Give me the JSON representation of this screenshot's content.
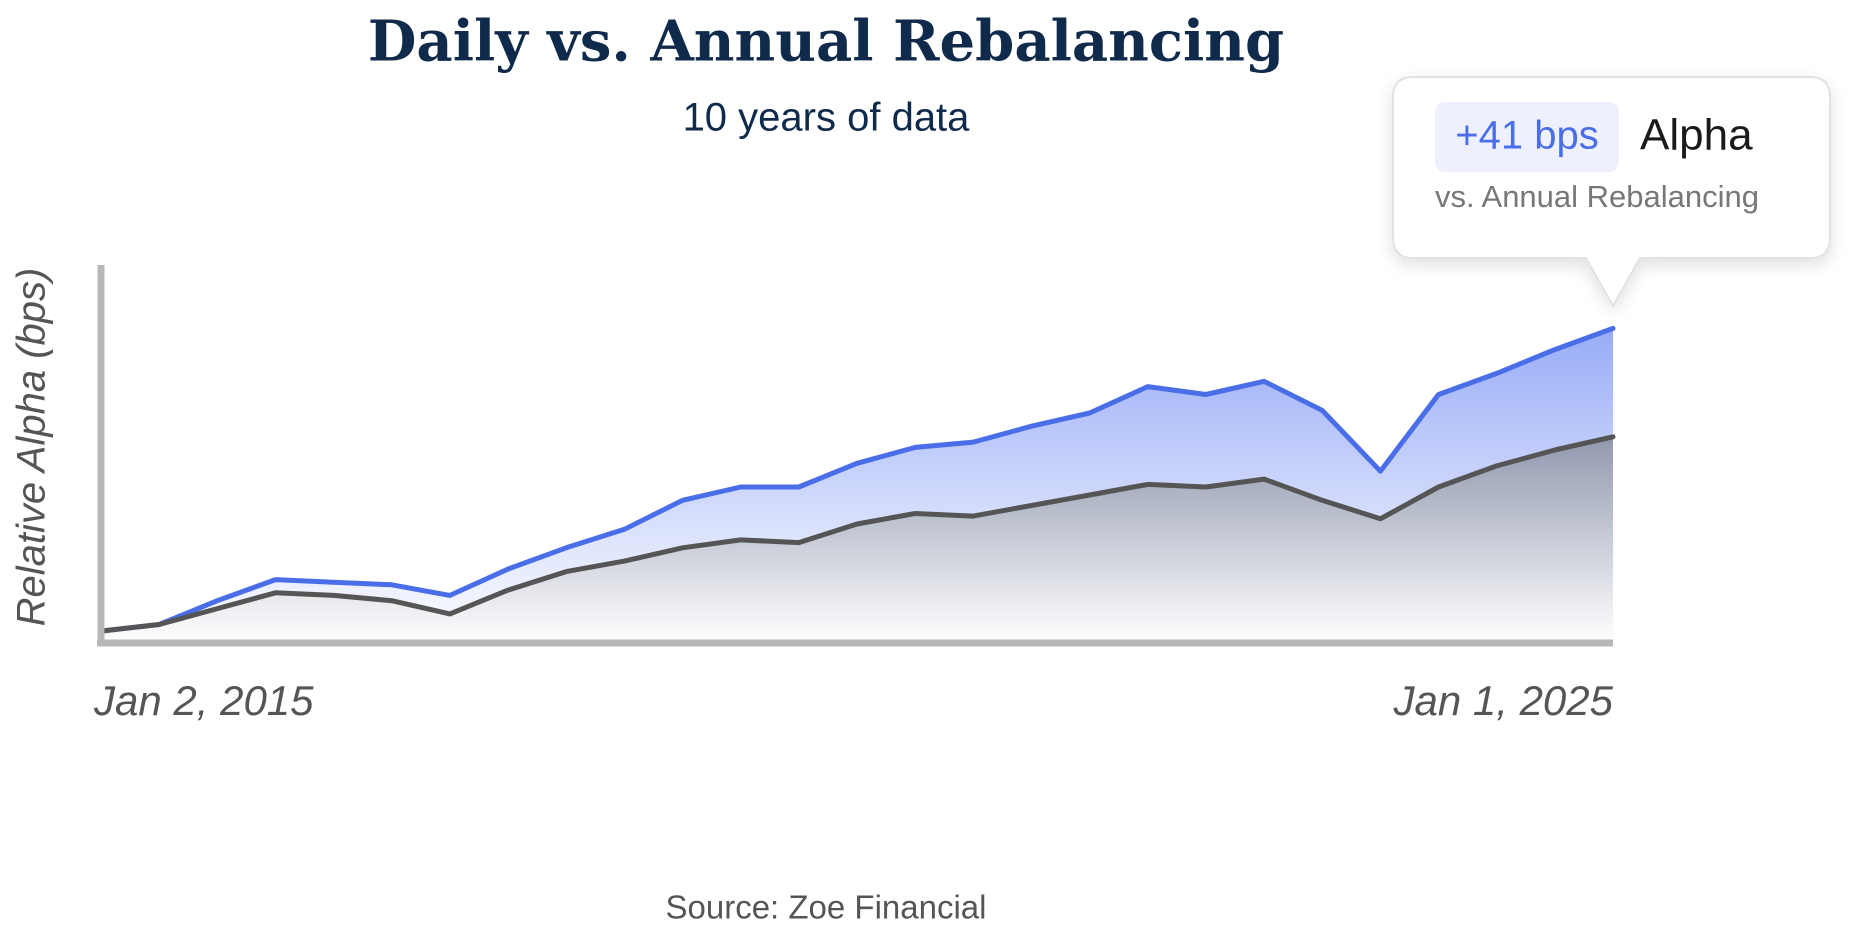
{
  "chart_data": {
    "type": "line",
    "title": "Daily vs. Annual Rebalancing",
    "subtitle": "10 years of data",
    "y_label": "Relative Alpha (bps)",
    "source": "Source: Zoe Financial",
    "annotation": {
      "badge": "+41 bps",
      "label": "Alpha",
      "note": "vs. Annual Rebalancing"
    },
    "categories": [
      "Jan 2, 2015",
      null,
      null,
      null,
      null,
      null,
      null,
      null,
      null,
      null,
      null,
      null,
      null,
      null,
      null,
      null,
      null,
      null,
      null,
      null,
      null,
      null,
      null,
      null,
      null,
      null,
      "Jan 1, 2025"
    ],
    "ylim": [
      0,
      143
    ],
    "series": [
      {
        "color": "#4a6ee8",
        "values": [
          4.5,
          7,
          16,
          24,
          23,
          22,
          18,
          28,
          36,
          43,
          54,
          59,
          59,
          68,
          74,
          76,
          82,
          87,
          97,
          94,
          99,
          88,
          65,
          94,
          102,
          111,
          119
        ]
      },
      {
        "color": "#555555",
        "values": [
          4.5,
          7,
          13,
          19,
          18,
          16,
          11,
          20,
          27,
          31,
          36,
          39,
          38,
          45,
          49,
          48,
          52,
          56,
          60,
          59,
          62,
          54,
          47,
          59,
          67,
          73,
          78
        ]
      }
    ]
  }
}
